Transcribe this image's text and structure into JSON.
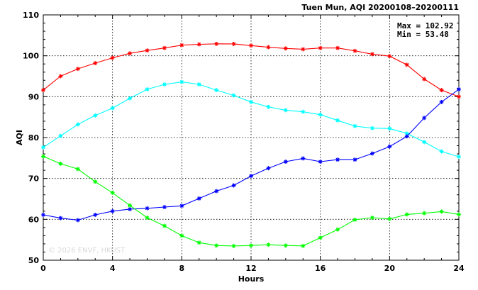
{
  "chart_data": {
    "type": "line",
    "title": "Tuen Mun, AQI 20200108–20200111",
    "xlabel": "Hours",
    "ylabel": "AQI",
    "xlim": [
      0,
      24
    ],
    "ylim": [
      50,
      110
    ],
    "xticks": [
      0,
      4,
      8,
      12,
      16,
      20,
      24
    ],
    "yticks": [
      50,
      60,
      70,
      80,
      90,
      100,
      110
    ],
    "grid": true,
    "stats": {
      "max": "Max = 102.92",
      "min": "Min =  53.48"
    },
    "watermark": "© 2026 ENVF, HKUST",
    "x": [
      0,
      1,
      2,
      3,
      4,
      5,
      6,
      7,
      8,
      9,
      10,
      11,
      12,
      13,
      14,
      15,
      16,
      17,
      18,
      19,
      20,
      21,
      22,
      23,
      24
    ],
    "series": [
      {
        "color": "#ff0000",
        "values": [
          91.6,
          95.0,
          96.8,
          98.2,
          99.5,
          100.6,
          101.3,
          101.9,
          102.6,
          102.8,
          102.92,
          102.9,
          102.5,
          102.1,
          101.8,
          101.6,
          101.9,
          101.9,
          101.2,
          100.4,
          99.9,
          97.8,
          94.3,
          91.6,
          90.0
        ]
      },
      {
        "color": "#00ffff",
        "values": [
          77.6,
          80.4,
          83.2,
          85.4,
          87.2,
          89.6,
          91.8,
          93.0,
          93.6,
          93.0,
          91.6,
          90.3,
          88.7,
          87.5,
          86.7,
          86.3,
          85.6,
          84.2,
          82.8,
          82.3,
          82.2,
          81.0,
          78.9,
          76.6,
          75.3
        ]
      },
      {
        "color": "#0000ff",
        "values": [
          61.1,
          60.3,
          59.8,
          61.1,
          62.0,
          62.5,
          62.7,
          63.0,
          63.3,
          65.1,
          66.9,
          68.3,
          70.6,
          72.5,
          74.1,
          74.9,
          74.1,
          74.6,
          74.6,
          76.1,
          77.8,
          80.3,
          84.8,
          88.7,
          91.8
        ]
      },
      {
        "color": "#00ff00",
        "values": [
          75.4,
          73.6,
          72.3,
          69.2,
          66.5,
          63.4,
          60.4,
          58.4,
          56.0,
          54.3,
          53.6,
          53.48,
          53.6,
          53.8,
          53.6,
          53.5,
          55.5,
          57.5,
          59.9,
          60.4,
          60.1,
          61.2,
          61.5,
          61.9,
          61.2
        ]
      }
    ]
  }
}
